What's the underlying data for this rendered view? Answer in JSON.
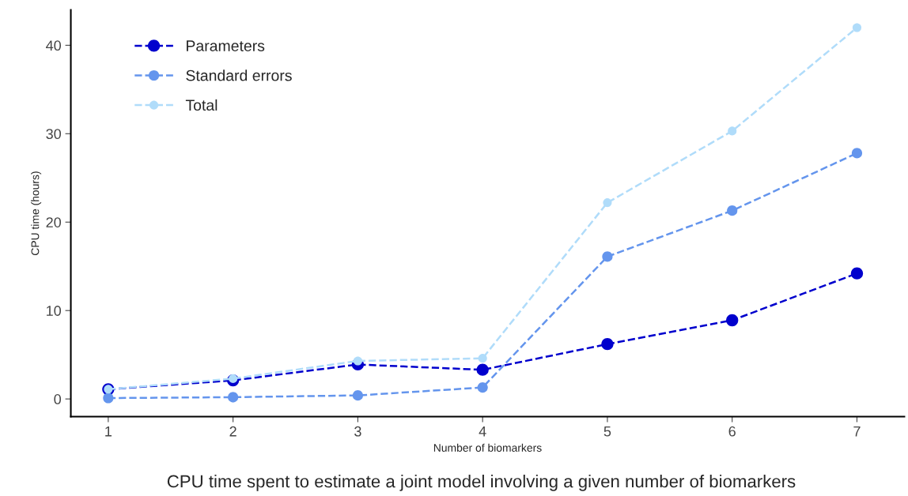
{
  "chart_data": {
    "type": "line",
    "xlabel": "Number of biomarkers",
    "ylabel": "CPU time (hours)",
    "x": [
      1,
      2,
      3,
      4,
      5,
      6,
      7
    ],
    "series": [
      {
        "name": "Parameters",
        "color": "#0000cd",
        "values": [
          1.1,
          2.1,
          3.9,
          3.3,
          6.2,
          8.9,
          14.2
        ]
      },
      {
        "name": "Standard errors",
        "color": "#6495ed",
        "values": [
          0.1,
          0.2,
          0.4,
          1.3,
          16.1,
          21.3,
          27.8
        ]
      },
      {
        "name": "Total",
        "color": "#b0dcfa",
        "values": [
          1.1,
          2.3,
          4.3,
          4.6,
          22.2,
          30.3,
          42.0
        ]
      }
    ],
    "xlim": [
      0.7,
      7.38
    ],
    "xticks": [
      1,
      2,
      3,
      4,
      5,
      6,
      7
    ],
    "ylim": [
      -2,
      44
    ],
    "yticks": [
      0,
      10,
      20,
      30,
      40
    ],
    "grid": false,
    "legend": "top left",
    "marker": "circle",
    "line_style": "dashed",
    "annotations": [
      "CPU time spent to estimate a joint model involving a given number of biomarkers"
    ]
  }
}
